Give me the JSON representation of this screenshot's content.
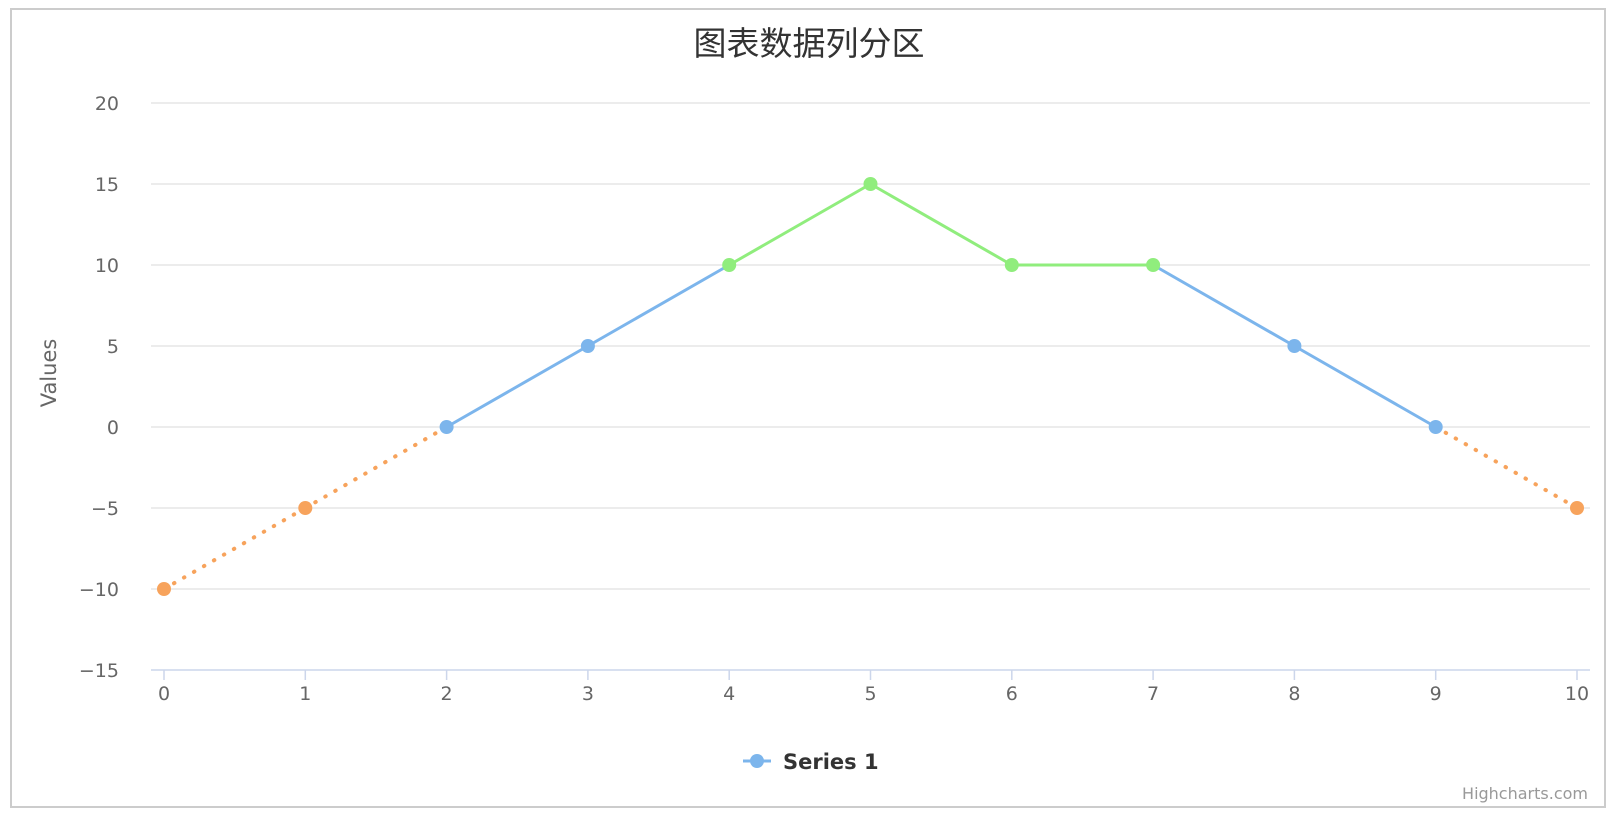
{
  "chart_data": {
    "type": "line",
    "title": "图表数据列分区",
    "ylabel": "Values",
    "xlabel": "",
    "x": [
      0,
      1,
      2,
      3,
      4,
      5,
      6,
      7,
      8,
      9,
      10
    ],
    "ylim": [
      -15,
      20
    ],
    "yticks": [
      -15,
      -10,
      -5,
      0,
      5,
      10,
      15,
      20
    ],
    "xticks": [
      0,
      1,
      2,
      3,
      4,
      5,
      6,
      7,
      8,
      9,
      10
    ],
    "grid": true,
    "legend_position": "bottom-center",
    "series": [
      {
        "name": "Series 1",
        "values": [
          -10,
          -5,
          0,
          5,
          10,
          15,
          10,
          10,
          5,
          0,
          -5
        ]
      }
    ],
    "zones": [
      {
        "upto": 0,
        "color": "#f7a35c",
        "dash": "dotted"
      },
      {
        "upto": 10,
        "color": "#7cb5ec",
        "dash": "solid"
      },
      {
        "upto": null,
        "color": "#90ed7d",
        "dash": "solid"
      }
    ]
  },
  "credits": "Highcharts.com",
  "colors": {
    "grid": "#e6e6e6",
    "axis_line": "#ccd6eb",
    "legend_symbol": "#7cb5ec"
  }
}
